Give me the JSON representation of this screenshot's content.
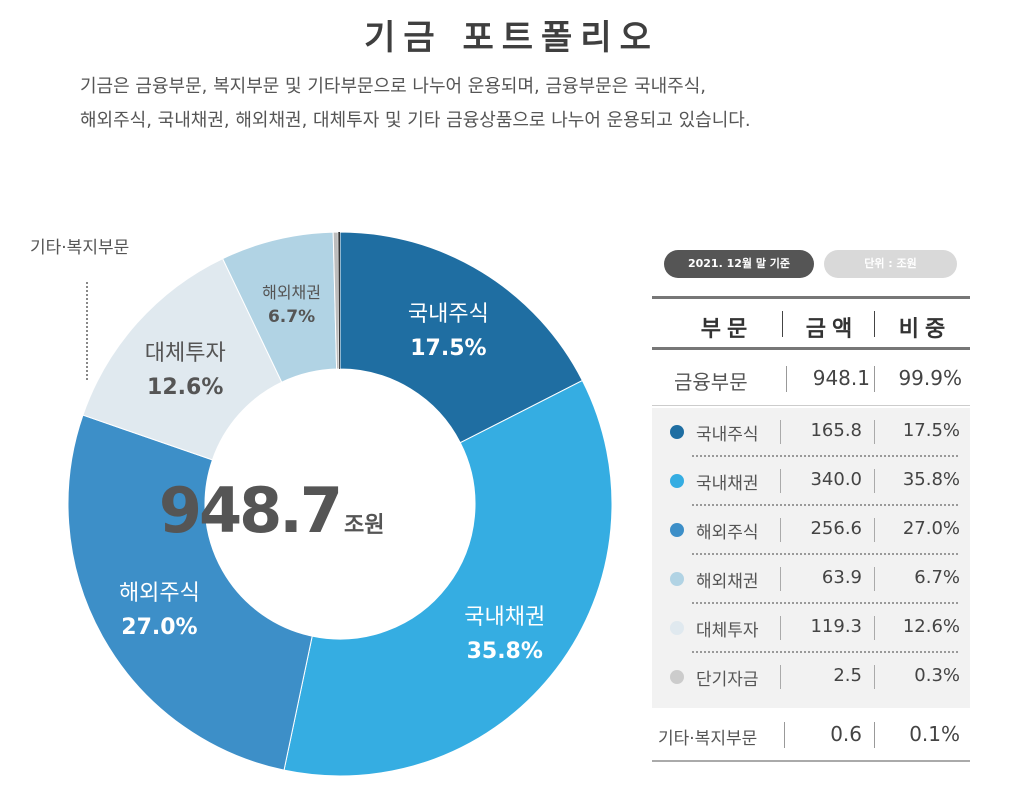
{
  "title": "기금 포트폴리오",
  "intro": [
    "기금은 금융부문, 복지부문 및 기타부문으로 나누어 운용되며, 금융부문은 국내주식,",
    "해외주식, 국내채권, 해외채권, 대체투자 및 기타 금융상품으로 나누어 운용되고 있습니다."
  ],
  "donut": {
    "center_value": "948.7",
    "center_unit": "조원",
    "outside_label": "기타·복지부문"
  },
  "table": {
    "date_badge": "2021. 12월 말 기준",
    "unit_badge": "단위 : 조원",
    "headers": [
      "부문",
      "금액",
      "비중"
    ],
    "financial": {
      "name": "금융부문",
      "amount": "948.1",
      "share": "99.9%"
    },
    "rows": [
      {
        "name": "국내주식",
        "amount": "165.8",
        "share": "17.5%",
        "color": "#1f6ea2"
      },
      {
        "name": "국내채권",
        "amount": "340.0",
        "share": "35.8%",
        "color": "#35ade2"
      },
      {
        "name": "해외주식",
        "amount": "256.6",
        "share": "27.0%",
        "color": "#3d8fc8"
      },
      {
        "name": "해외채권",
        "amount": "63.9",
        "share": "6.7%",
        "color": "#b1d3e4"
      },
      {
        "name": "대체투자",
        "amount": "119.3",
        "share": "12.6%",
        "color": "#e0e9ef"
      },
      {
        "name": "단기자금",
        "amount": "2.5",
        "share": "0.3%",
        "color": "#cccccc"
      }
    ],
    "other": {
      "name": "기타·복지부문",
      "amount": "0.6",
      "share": "0.1%"
    }
  },
  "chart_data": {
    "type": "pie",
    "title": "기금 포트폴리오",
    "total": 948.7,
    "unit": "조원",
    "categories": [
      "국내주식",
      "국내채권",
      "해외주식",
      "대체투자",
      "해외채권",
      "단기자금",
      "기타·복지부문"
    ],
    "values": [
      17.5,
      35.8,
      27.0,
      12.6,
      6.7,
      0.3,
      0.1
    ],
    "amounts": [
      165.8,
      340.0,
      256.6,
      119.3,
      63.9,
      2.5,
      0.6
    ],
    "labels": [
      "17.5%",
      "35.8%",
      "27.0%",
      "12.6%",
      "6.7%",
      "",
      ""
    ],
    "colors": [
      "#1f6ea2",
      "#35ade2",
      "#3d8fc8",
      "#e0e9ef",
      "#b1d3e4",
      "#bdbdbd",
      "#333333"
    ],
    "label_colors": [
      "#ffffff",
      "#ffffff",
      "#ffffff",
      "#555555",
      "#555555",
      "#555555",
      "#555555"
    ]
  }
}
